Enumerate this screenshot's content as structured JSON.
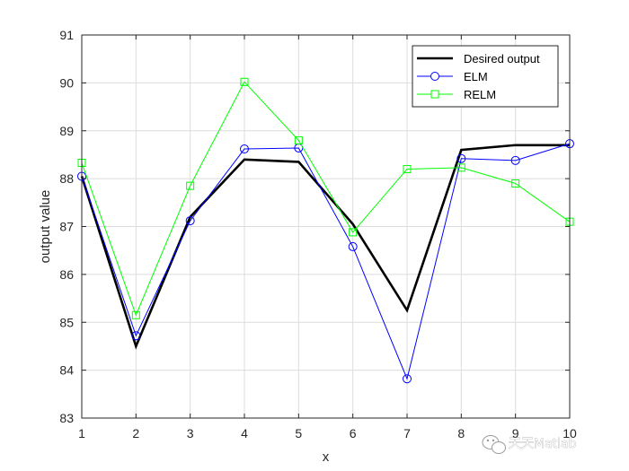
{
  "chart_data": {
    "type": "line",
    "x": [
      1,
      2,
      3,
      4,
      5,
      6,
      7,
      8,
      9,
      10
    ],
    "xlabel": "x",
    "ylabel": "output value",
    "xlim": [
      1,
      10
    ],
    "ylim": [
      83,
      91
    ],
    "xticks": [
      1,
      2,
      3,
      4,
      5,
      6,
      7,
      8,
      9,
      10
    ],
    "yticks": [
      83,
      84,
      85,
      86,
      87,
      88,
      89,
      90,
      91
    ],
    "grid": true,
    "legend_position": "top-right",
    "series": [
      {
        "name": "Desired output",
        "color": "#000000",
        "marker": "none",
        "values": [
          88.05,
          84.5,
          87.2,
          88.4,
          88.35,
          87.05,
          85.25,
          88.6,
          88.7,
          88.7
        ]
      },
      {
        "name": "ELM",
        "color": "#0000ff",
        "marker": "circle",
        "values": [
          88.05,
          84.72,
          87.12,
          88.62,
          88.64,
          86.58,
          83.82,
          88.42,
          88.38,
          88.73
        ]
      },
      {
        "name": "RELM",
        "color": "#00ff00",
        "marker": "square",
        "values": [
          88.33,
          85.15,
          87.85,
          90.02,
          88.8,
          86.88,
          88.2,
          88.23,
          87.9,
          87.1
        ]
      }
    ]
  },
  "watermark": {
    "text": "天天Matlab",
    "icon": "wechat-icon"
  }
}
